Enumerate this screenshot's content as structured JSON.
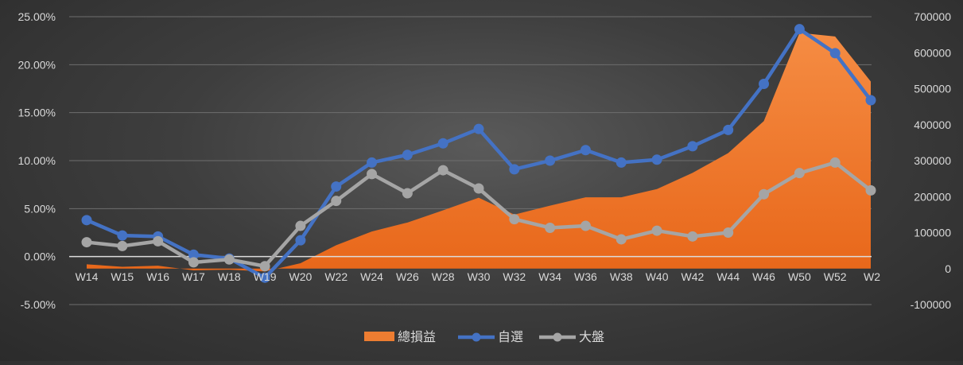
{
  "chart_data": {
    "type": "line",
    "categories": [
      "W14",
      "W15",
      "W16",
      "W17",
      "W18",
      "W19",
      "W20",
      "W22",
      "W24",
      "W26",
      "W28",
      "W30",
      "W32",
      "W34",
      "W36",
      "W38",
      "W40",
      "W42",
      "W44",
      "W46",
      "W50",
      "W52",
      "W2"
    ],
    "y_left": {
      "ylim": [
        -0.05,
        0.25
      ],
      "ticks": [
        "-5.00%",
        "0.00%",
        "5.00%",
        "10.00%",
        "15.00%",
        "20.00%",
        "25.00%"
      ]
    },
    "y_right": {
      "ylim": [
        -100000,
        700000
      ],
      "ticks": [
        "-100000",
        "0",
        "100000",
        "200000",
        "300000",
        "400000",
        "500000",
        "600000",
        "700000"
      ]
    },
    "grid": true,
    "legend_position": "bottom",
    "series": [
      {
        "name": "總損益",
        "kind": "area",
        "axis": "right",
        "color": "#ed7d31",
        "values": [
          12000,
          5000,
          8000,
          -5000,
          -3000,
          -8000,
          15000,
          65000,
          103000,
          128000,
          162000,
          197000,
          150000,
          175000,
          198000,
          198000,
          221000,
          266000,
          321000,
          410000,
          655000,
          645000,
          520000
        ]
      },
      {
        "name": "自選",
        "kind": "line",
        "axis": "left",
        "color": "#4472c4",
        "values": [
          0.038,
          0.022,
          0.021,
          0.002,
          -0.002,
          -0.022,
          0.017,
          0.073,
          0.098,
          0.106,
          0.118,
          0.133,
          0.091,
          0.1,
          0.111,
          0.098,
          0.101,
          0.115,
          0.132,
          0.18,
          0.237,
          0.212,
          0.163
        ]
      },
      {
        "name": "大盤",
        "kind": "line",
        "axis": "left",
        "color": "#a5a5a5",
        "values": [
          0.015,
          0.011,
          0.016,
          -0.006,
          -0.003,
          -0.01,
          0.032,
          0.058,
          0.086,
          0.066,
          0.09,
          0.071,
          0.039,
          0.03,
          0.032,
          0.018,
          0.027,
          0.021,
          0.025,
          0.065,
          0.087,
          0.098,
          0.069
        ]
      }
    ]
  }
}
